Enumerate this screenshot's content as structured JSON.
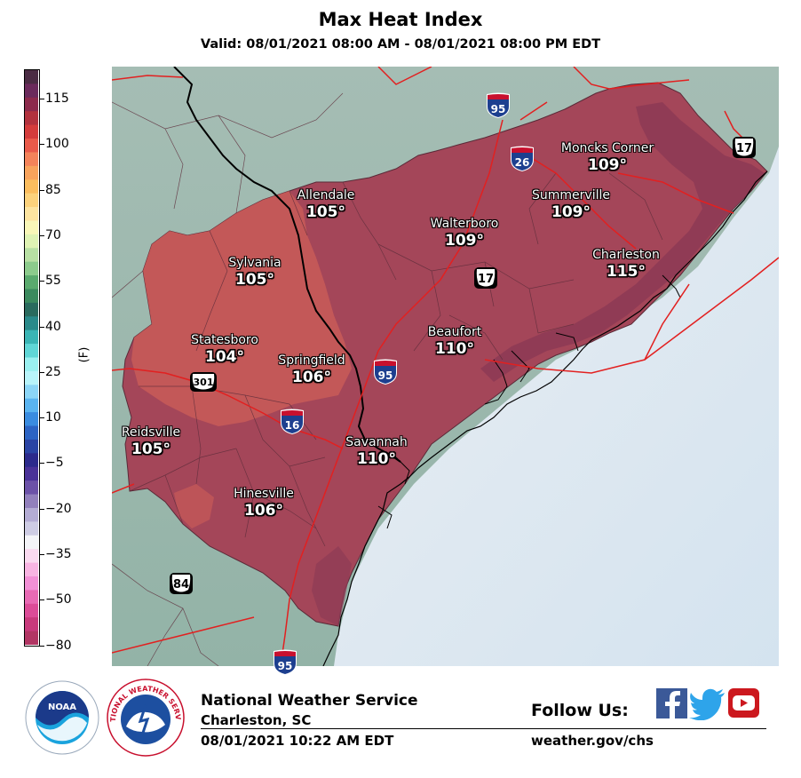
{
  "header": {
    "title": "Max Heat Index",
    "subtitle": "Valid: 08/01/2021 08:00 AM - 08/01/2021 08:00 PM EDT"
  },
  "colorbar": {
    "unit": "(F)",
    "ticks": [
      "115",
      "100",
      "85",
      "70",
      "55",
      "40",
      "25",
      "10",
      "−5",
      "−20",
      "−35",
      "−50",
      "−80"
    ],
    "colors_top_to_bottom": [
      "#4b2c44",
      "#6b2a5c",
      "#8c2a4c",
      "#b2323e",
      "#d43c3c",
      "#e95a4a",
      "#f4835a",
      "#f8a35c",
      "#fbbd5e",
      "#fcd27c",
      "#fde4a0",
      "#f9f7b8",
      "#dff3b4",
      "#b8e0a4",
      "#8ccb8c",
      "#5aaa6e",
      "#3b8a5e",
      "#2a6b5e",
      "#2a8a8a",
      "#3ab5b5",
      "#5fd6d6",
      "#9af0f0",
      "#b8f4fa",
      "#8cd6f7",
      "#5ab4f0",
      "#3a8ce0",
      "#2c64c4",
      "#2a44a4",
      "#2c2a8c",
      "#4a3298",
      "#6c52a8",
      "#9280bc",
      "#b4acd4",
      "#cecce4",
      "#f4f4f8",
      "#fadaf0",
      "#f8b4e2",
      "#f290d6",
      "#e86ab4",
      "#dc4c98",
      "#c83a7c",
      "#b23664"
    ]
  },
  "map": {
    "cities": [
      {
        "name": "Allendale",
        "value": "105°"
      },
      {
        "name": "Moncks Corner",
        "value": "109°"
      },
      {
        "name": "Summerville",
        "value": "109°"
      },
      {
        "name": "Walterboro",
        "value": "109°"
      },
      {
        "name": "Sylvania",
        "value": "105°"
      },
      {
        "name": "Charleston",
        "value": "115°"
      },
      {
        "name": "Statesboro",
        "value": "104°"
      },
      {
        "name": "Beaufort",
        "value": "110°"
      },
      {
        "name": "Springfield",
        "value": "106°"
      },
      {
        "name": "Reidsville",
        "value": "105°"
      },
      {
        "name": "Savannah",
        "value": "110°"
      },
      {
        "name": "Hinesville",
        "value": "106°"
      }
    ],
    "interstate_shields": [
      "95",
      "26",
      "95",
      "16",
      "95"
    ],
    "us_route_shields": [
      "17",
      "17",
      "301",
      "84"
    ],
    "colors": {
      "land_outside": "#9fbcb1",
      "ocean": "#dde8f2",
      "heat_105": "#c65a58",
      "heat_109": "#a44659",
      "heat_115": "#8d3a55",
      "roads": "#e52121"
    }
  },
  "footer": {
    "org": "National Weather Service",
    "office": "Charleston, SC",
    "issued": "08/01/2021 10:22 AM EDT",
    "follow": "Follow Us:",
    "website": "weather.gov/chs",
    "noaa_logo_text": "NOAA",
    "nws_logo_text": "NATIONAL WEATHER SERVICE",
    "social": [
      "facebook-icon",
      "twitter-icon",
      "youtube-icon"
    ]
  }
}
